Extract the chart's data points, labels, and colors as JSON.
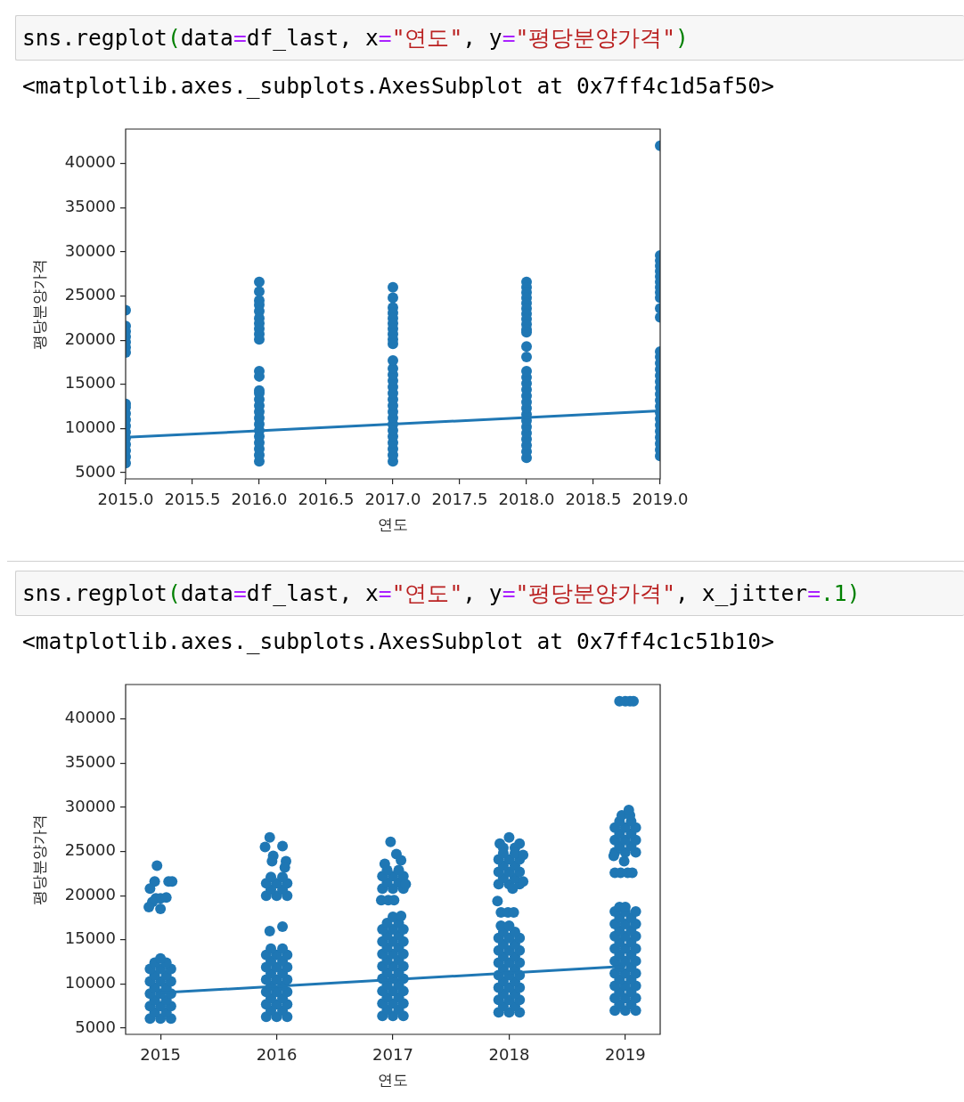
{
  "chart_data": [
    {
      "type": "scatter",
      "annotations": [
        "sns.regplot(data=df_last, x=\"연도\", y=\"평당분양가격\")",
        "<matplotlib.axes._subplots.AxesSubplot at 0x7ff4c1d5af50>"
      ],
      "xlabel": "연도",
      "ylabel": "평당분양가격",
      "xlim": [
        2015,
        2019
      ],
      "xticks": [
        {
          "value": 2015,
          "label": "2015.0"
        },
        2015.5,
        {
          "value": 2016,
          "label": "2016.0"
        },
        2016.5,
        {
          "value": 2017,
          "label": "2017.0"
        },
        2017.5,
        {
          "value": 2018,
          "label": "2018.0"
        },
        2018.5,
        {
          "value": 2019,
          "label": "2019.0"
        }
      ],
      "ylim": [
        4300,
        43900
      ],
      "yticks": [
        5000,
        10000,
        15000,
        20000,
        25000,
        30000,
        35000,
        40000
      ],
      "series": [
        {
          "type": "scatter",
          "marker": "circle",
          "color": "#1f77b4",
          "x": [
            2015,
            2015,
            2015,
            2015,
            2015,
            2015,
            2015,
            2015,
            2015,
            2015,
            2015,
            2015,
            2015,
            2015,
            2015,
            2015,
            2015,
            2015,
            2016,
            2016,
            2016,
            2016,
            2016,
            2016,
            2016,
            2016,
            2016,
            2016,
            2016,
            2016,
            2016,
            2016,
            2016,
            2016,
            2016,
            2016,
            2016,
            2016,
            2016,
            2016,
            2016,
            2016,
            2016,
            2017,
            2017,
            2017,
            2017,
            2017,
            2017,
            2017,
            2017,
            2017,
            2017,
            2017,
            2017,
            2017,
            2017,
            2017,
            2017,
            2017,
            2017,
            2017,
            2017,
            2017,
            2017,
            2017,
            2017,
            2017,
            2017,
            2017,
            2018,
            2018,
            2018,
            2018,
            2018,
            2018,
            2018,
            2018,
            2018,
            2018,
            2018,
            2018,
            2018,
            2018,
            2018,
            2018,
            2018,
            2018,
            2018,
            2018,
            2018,
            2018,
            2018,
            2018,
            2018,
            2018,
            2018,
            2018,
            2019,
            2019,
            2019,
            2019,
            2019,
            2019,
            2019,
            2019,
            2019,
            2019,
            2019,
            2019,
            2019,
            2019,
            2019,
            2019,
            2019,
            2019,
            2019,
            2019,
            2019,
            2019,
            2019,
            2019,
            2019,
            2019,
            2019,
            2019,
            2019,
            2019
          ],
          "values": [
            23400,
            21600,
            21000,
            20400,
            19800,
            19200,
            18600,
            6100,
            6800,
            7500,
            8200,
            8900,
            9600,
            10300,
            11000,
            11700,
            12400,
            12800,
            26600,
            25500,
            24500,
            24000,
            23300,
            22500,
            21900,
            21300,
            20700,
            20100,
            16500,
            15900,
            6300,
            7000,
            7700,
            8400,
            9100,
            9800,
            10500,
            11200,
            11900,
            12600,
            13300,
            14000,
            14300,
            26000,
            24800,
            23700,
            23100,
            22500,
            21900,
            21300,
            20700,
            20100,
            19600,
            6300,
            7000,
            7700,
            8400,
            9100,
            9800,
            10500,
            11200,
            11900,
            12600,
            13300,
            14000,
            14700,
            15400,
            16100,
            16800,
            17700,
            26600,
            26000,
            25400,
            24800,
            24200,
            23600,
            23000,
            22400,
            21800,
            21200,
            20900,
            19300,
            18100,
            6700,
            7400,
            8100,
            8800,
            9500,
            10200,
            10900,
            11600,
            12300,
            13000,
            13700,
            14400,
            15100,
            15800,
            16500,
            42000,
            29600,
            29000,
            28400,
            27800,
            27200,
            26600,
            26000,
            25400,
            24800,
            23600,
            22600,
            6900,
            7600,
            8300,
            9000,
            9700,
            10400,
            11100,
            11800,
            12500,
            13200,
            13900,
            14600,
            15300,
            16000,
            16700,
            17400,
            18100,
            18700
          ]
        },
        {
          "type": "line",
          "color": "#1f77b4",
          "x": [
            2015,
            2019
          ],
          "values": [
            9000,
            12000
          ]
        }
      ]
    },
    {
      "type": "scatter",
      "annotations": [
        "sns.regplot(data=df_last, x=\"연도\", y=\"평당분양가격\", x_jitter=.1)",
        "<matplotlib.axes._subplots.AxesSubplot at 0x7ff4c1c51b10>"
      ],
      "xlabel": "연도",
      "ylabel": "평당분양가격",
      "xlim": [
        2014.7,
        2019.3
      ],
      "xticks": [
        2015,
        2016,
        2017,
        2018,
        2019
      ],
      "ylim": [
        4300,
        43900
      ],
      "yticks": [
        5000,
        10000,
        15000,
        20000,
        25000,
        30000,
        35000,
        40000
      ],
      "series": [
        {
          "type": "scatter",
          "marker": "circle",
          "color": "#1f77b4",
          "x": [
            2014.97,
            2014.95,
            2015.07,
            2015.1,
            2014.91,
            2014.96,
            2015,
            2015.05,
            2014.93,
            2014.9,
            2015,
            2014.91,
            2015,
            2015.09,
            2014.95,
            2015.05,
            2014.91,
            2015,
            2015.09,
            2014.95,
            2015.05,
            2014.91,
            2015,
            2015.09,
            2014.95,
            2015.05,
            2014.91,
            2015,
            2015.09,
            2014.95,
            2015.05,
            2014.91,
            2015,
            2015.09,
            2014.95,
            2015.05,
            2015,
            2015.94,
            2015.9,
            2016.05,
            2015.97,
            2015.96,
            2016.08,
            2016.07,
            2015.91,
            2016,
            2016.09,
            2015.95,
            2016.05,
            2015.91,
            2016,
            2016.09,
            2015.95,
            2016.05,
            2015.94,
            2016.05,
            2015.91,
            2016,
            2016.09,
            2015.95,
            2016.05,
            2015.91,
            2016,
            2016.09,
            2015.95,
            2016.05,
            2015.91,
            2016,
            2016.09,
            2015.95,
            2016.05,
            2015.91,
            2016,
            2016.09,
            2015.95,
            2016.05,
            2015.91,
            2016,
            2016.09,
            2015.95,
            2016.05,
            2015.91,
            2016,
            2016.09,
            2015.95,
            2016.05,
            2016.98,
            2017.03,
            2016.93,
            2017.07,
            2016.91,
            2017,
            2017.09,
            2016.95,
            2017.05,
            2016.91,
            2017,
            2017.09,
            2016.95,
            2017.05,
            2017.11,
            2016.9,
            2016.96,
            2017.01,
            2016.91,
            2017,
            2017.09,
            2016.95,
            2017.05,
            2016.91,
            2017,
            2017.09,
            2016.95,
            2017.05,
            2016.91,
            2017,
            2017.09,
            2016.95,
            2017.05,
            2016.91,
            2017,
            2017.09,
            2016.95,
            2017.05,
            2016.91,
            2017,
            2017.09,
            2016.95,
            2017.05,
            2016.91,
            2017,
            2017.09,
            2016.95,
            2017.05,
            2016.91,
            2017,
            2017.09,
            2016.95,
            2017.05,
            2016.91,
            2017,
            2017.09,
            2016.95,
            2017.05,
            2017,
            2017.07,
            2018,
            2017.92,
            2018.09,
            2017.95,
            2018.05,
            2017.91,
            2018,
            2018.09,
            2017.95,
            2018.05,
            2017.91,
            2018,
            2018.09,
            2017.95,
            2018.05,
            2017.91,
            2018,
            2018.09,
            2017.95,
            2018.05,
            2018.12,
            2018.03,
            2018.12,
            2017.9,
            2017.93,
            2017.99,
            2018.04,
            2017.91,
            2018,
            2018.09,
            2017.95,
            2018.05,
            2017.91,
            2018,
            2018.09,
            2017.95,
            2018.05,
            2017.91,
            2018,
            2018.09,
            2017.95,
            2018.05,
            2017.91,
            2018,
            2018.09,
            2017.95,
            2018.05,
            2017.91,
            2018,
            2018.09,
            2017.95,
            2018.05,
            2017.91,
            2018,
            2018.09,
            2017.95,
            2018.05,
            2017.91,
            2018,
            2018.09,
            2017.95,
            2018.05,
            2017.93,
            2018,
            2018.95,
            2019,
            2019.04,
            2019.07,
            2018.91,
            2019,
            2019.09,
            2018.95,
            2019.05,
            2018.91,
            2019,
            2019.09,
            2018.95,
            2019.05,
            2018.91,
            2019,
            2019.09,
            2018.95,
            2019.05,
            2018.97,
            2019.04,
            2019.03,
            2018.9,
            2018.99,
            2018.91,
            2018.96,
            2019.02,
            2019.06,
            2018.91,
            2019,
            2019.09,
            2018.95,
            2019.05,
            2018.91,
            2019,
            2019.09,
            2018.95,
            2019.05,
            2018.91,
            2019,
            2019.09,
            2018.95,
            2019.05,
            2018.91,
            2019,
            2019.09,
            2018.95,
            2019.05,
            2018.91,
            2019,
            2019.09,
            2018.95,
            2019.05,
            2018.91,
            2019,
            2019.09,
            2018.95,
            2019.05,
            2018.91,
            2019,
            2019.09,
            2018.95,
            2019.05,
            2018.91,
            2019,
            2019.09,
            2018.95,
            2019.05,
            2018.91,
            2019,
            2019.09,
            2018.95,
            2019
          ],
          "values": [
            23400,
            21600,
            21600,
            21600,
            20800,
            19700,
            19700,
            19800,
            19300,
            18700,
            18500,
            6100,
            6100,
            6100,
            6800,
            6800,
            7500,
            7500,
            7500,
            8200,
            8200,
            8900,
            8900,
            8900,
            9600,
            9600,
            10300,
            10300,
            10300,
            11000,
            11000,
            11700,
            11700,
            11700,
            12400,
            12400,
            12900,
            26600,
            25500,
            25600,
            24500,
            23900,
            23900,
            23200,
            20000,
            20000,
            20000,
            20700,
            20700,
            21400,
            21400,
            21400,
            22100,
            22100,
            16000,
            16500,
            6300,
            6300,
            6300,
            7000,
            7000,
            7700,
            7700,
            7700,
            8400,
            8400,
            9100,
            9100,
            9100,
            9800,
            9800,
            10500,
            10500,
            10500,
            11200,
            11200,
            11900,
            11900,
            11900,
            12600,
            12600,
            13300,
            13300,
            13300,
            14000,
            14000,
            26100,
            24700,
            23600,
            24000,
            20800,
            20800,
            20800,
            21500,
            21500,
            22200,
            22200,
            22200,
            22900,
            22900,
            21300,
            19500,
            19500,
            19500,
            6400,
            6400,
            6400,
            7100,
            7100,
            7800,
            7800,
            7800,
            8500,
            8500,
            9200,
            9200,
            9200,
            9900,
            9900,
            10600,
            10600,
            10600,
            11300,
            11300,
            12000,
            12000,
            12000,
            12700,
            12700,
            13400,
            13400,
            13400,
            14100,
            14100,
            14800,
            14800,
            14800,
            15500,
            15500,
            16200,
            16200,
            16200,
            16900,
            16900,
            17600,
            17700,
            26600,
            25900,
            25900,
            25400,
            25400,
            21300,
            21300,
            21300,
            22000,
            22000,
            22700,
            22700,
            22700,
            23400,
            23400,
            24100,
            24100,
            24100,
            24800,
            24800,
            24600,
            20800,
            21600,
            19400,
            18100,
            18100,
            18100,
            6800,
            6800,
            6800,
            7500,
            7500,
            8200,
            8200,
            8200,
            8900,
            8900,
            9600,
            9600,
            9600,
            10300,
            10300,
            11000,
            11000,
            11000,
            11700,
            11700,
            12400,
            12400,
            12400,
            13100,
            13100,
            13800,
            13800,
            13800,
            14500,
            14500,
            15200,
            15200,
            15200,
            15900,
            15900,
            16600,
            16600,
            42000,
            42000,
            42000,
            42000,
            24900,
            24900,
            24900,
            25600,
            25600,
            26300,
            26300,
            26300,
            27000,
            27000,
            27700,
            27700,
            27700,
            28400,
            28400,
            29100,
            29100,
            29700,
            24500,
            23900,
            22600,
            22600,
            22600,
            22600,
            7000,
            7000,
            7000,
            7700,
            7700,
            8400,
            8400,
            8400,
            9100,
            9100,
            9800,
            9800,
            9800,
            10500,
            10500,
            11200,
            11200,
            11200,
            11900,
            11900,
            12600,
            12600,
            12600,
            13300,
            13300,
            14000,
            14000,
            14000,
            14700,
            14700,
            15400,
            15400,
            15400,
            16100,
            16100,
            16800,
            16800,
            16800,
            17500,
            17500,
            18200,
            18200,
            18200,
            18700,
            18700
          ]
        },
        {
          "type": "line",
          "color": "#1f77b4",
          "x": [
            2015,
            2019
          ],
          "values": [
            9000,
            12000
          ]
        }
      ]
    }
  ]
}
